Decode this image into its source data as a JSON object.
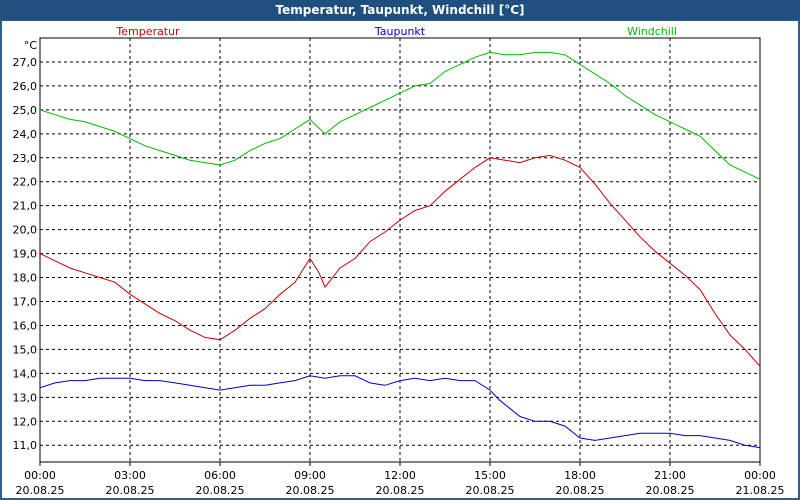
{
  "window": {
    "title": "Temperatur, Taupunkt, Windchill [°C]"
  },
  "chart_data": {
    "type": "line",
    "title": "Temperatur, Taupunkt, Windchill [°C]",
    "ylabel": "°C",
    "xlabel": "",
    "ylim": [
      10.3,
      28.0
    ],
    "yticks": [
      11.0,
      12.0,
      13.0,
      14.0,
      15.0,
      16.0,
      17.0,
      18.0,
      19.0,
      20.0,
      21.0,
      22.0,
      23.0,
      24.0,
      25.0,
      26.0,
      27.0
    ],
    "ytick_labels": [
      "11,0",
      "12,0",
      "13,0",
      "14,0",
      "15,0",
      "16,0",
      "17,0",
      "18,0",
      "19,0",
      "20,0",
      "21,0",
      "22,0",
      "23,0",
      "24,0",
      "25,0",
      "26,0",
      "27,0"
    ],
    "xlim": [
      0,
      24
    ],
    "xticks": [
      {
        "hour": 0,
        "time": "00:00",
        "date": "20.08.25"
      },
      {
        "hour": 3,
        "time": "03:00",
        "date": "20.08.25"
      },
      {
        "hour": 6,
        "time": "06:00",
        "date": "20.08.25"
      },
      {
        "hour": 9,
        "time": "09:00",
        "date": "20.08.25"
      },
      {
        "hour": 12,
        "time": "12:00",
        "date": "20.08.25"
      },
      {
        "hour": 15,
        "time": "15:00",
        "date": "20.08.25"
      },
      {
        "hour": 18,
        "time": "18:00",
        "date": "20.08.25"
      },
      {
        "hour": 21,
        "time": "21:00",
        "date": "20.08.25"
      },
      {
        "hour": 24,
        "time": "00:00",
        "date": "21.08.25"
      }
    ],
    "grid": true,
    "legend_position": "top",
    "series": [
      {
        "name": "Temperatur",
        "color": "#cc0000",
        "points": [
          [
            0.0,
            19.0
          ],
          [
            0.5,
            18.7
          ],
          [
            1.0,
            18.4
          ],
          [
            1.5,
            18.2
          ],
          [
            2.0,
            18.0
          ],
          [
            2.5,
            17.8
          ],
          [
            3.0,
            17.3
          ],
          [
            3.5,
            16.9
          ],
          [
            4.0,
            16.5
          ],
          [
            4.5,
            16.2
          ],
          [
            5.0,
            15.8
          ],
          [
            5.5,
            15.5
          ],
          [
            6.0,
            15.4
          ],
          [
            6.5,
            15.8
          ],
          [
            7.0,
            16.3
          ],
          [
            7.5,
            16.7
          ],
          [
            8.0,
            17.3
          ],
          [
            8.5,
            17.8
          ],
          [
            9.0,
            18.8
          ],
          [
            9.3,
            18.2
          ],
          [
            9.5,
            17.6
          ],
          [
            10.0,
            18.4
          ],
          [
            10.5,
            18.8
          ],
          [
            11.0,
            19.5
          ],
          [
            11.5,
            19.9
          ],
          [
            12.0,
            20.4
          ],
          [
            12.5,
            20.8
          ],
          [
            13.0,
            21.0
          ],
          [
            13.5,
            21.6
          ],
          [
            14.0,
            22.1
          ],
          [
            14.5,
            22.6
          ],
          [
            15.0,
            23.0
          ],
          [
            15.5,
            22.9
          ],
          [
            16.0,
            22.8
          ],
          [
            16.5,
            23.0
          ],
          [
            17.0,
            23.1
          ],
          [
            17.5,
            22.9
          ],
          [
            18.0,
            22.6
          ],
          [
            18.5,
            21.9
          ],
          [
            19.0,
            21.1
          ],
          [
            19.5,
            20.4
          ],
          [
            20.0,
            19.7
          ],
          [
            20.5,
            19.1
          ],
          [
            21.0,
            18.6
          ],
          [
            21.5,
            18.1
          ],
          [
            22.0,
            17.5
          ],
          [
            22.5,
            16.5
          ],
          [
            23.0,
            15.6
          ],
          [
            23.5,
            15.0
          ],
          [
            24.0,
            14.3
          ]
        ]
      },
      {
        "name": "Taupunkt",
        "color": "#0000cc",
        "points": [
          [
            0.0,
            13.4
          ],
          [
            0.5,
            13.6
          ],
          [
            1.0,
            13.7
          ],
          [
            1.5,
            13.7
          ],
          [
            2.0,
            13.8
          ],
          [
            2.5,
            13.8
          ],
          [
            3.0,
            13.8
          ],
          [
            3.5,
            13.7
          ],
          [
            4.0,
            13.7
          ],
          [
            4.5,
            13.6
          ],
          [
            5.0,
            13.5
          ],
          [
            5.5,
            13.4
          ],
          [
            6.0,
            13.3
          ],
          [
            6.5,
            13.4
          ],
          [
            7.0,
            13.5
          ],
          [
            7.5,
            13.5
          ],
          [
            8.0,
            13.6
          ],
          [
            8.5,
            13.7
          ],
          [
            9.0,
            13.9
          ],
          [
            9.5,
            13.8
          ],
          [
            10.0,
            13.9
          ],
          [
            10.5,
            13.9
          ],
          [
            11.0,
            13.6
          ],
          [
            11.5,
            13.5
          ],
          [
            12.0,
            13.7
          ],
          [
            12.5,
            13.8
          ],
          [
            13.0,
            13.7
          ],
          [
            13.5,
            13.8
          ],
          [
            14.0,
            13.7
          ],
          [
            14.5,
            13.7
          ],
          [
            15.0,
            13.3
          ],
          [
            15.3,
            12.9
          ],
          [
            15.7,
            12.5
          ],
          [
            16.0,
            12.2
          ],
          [
            16.5,
            12.0
          ],
          [
            17.0,
            12.0
          ],
          [
            17.5,
            11.8
          ],
          [
            18.0,
            11.3
          ],
          [
            18.5,
            11.2
          ],
          [
            19.0,
            11.3
          ],
          [
            19.5,
            11.4
          ],
          [
            20.0,
            11.5
          ],
          [
            20.5,
            11.5
          ],
          [
            21.0,
            11.5
          ],
          [
            21.5,
            11.4
          ],
          [
            22.0,
            11.4
          ],
          [
            22.5,
            11.3
          ],
          [
            23.0,
            11.2
          ],
          [
            23.5,
            11.0
          ],
          [
            24.0,
            10.9
          ]
        ]
      },
      {
        "name": "Windchill",
        "color": "#00bb00",
        "points": [
          [
            0.0,
            25.0
          ],
          [
            0.5,
            24.8
          ],
          [
            1.0,
            24.6
          ],
          [
            1.5,
            24.5
          ],
          [
            2.0,
            24.3
          ],
          [
            2.5,
            24.1
          ],
          [
            3.0,
            23.8
          ],
          [
            3.5,
            23.5
          ],
          [
            4.0,
            23.3
          ],
          [
            4.5,
            23.1
          ],
          [
            5.0,
            22.9
          ],
          [
            5.5,
            22.8
          ],
          [
            6.0,
            22.7
          ],
          [
            6.5,
            22.9
          ],
          [
            7.0,
            23.3
          ],
          [
            7.5,
            23.6
          ],
          [
            8.0,
            23.8
          ],
          [
            8.5,
            24.2
          ],
          [
            9.0,
            24.6
          ],
          [
            9.5,
            24.0
          ],
          [
            10.0,
            24.5
          ],
          [
            10.5,
            24.8
          ],
          [
            11.0,
            25.1
          ],
          [
            11.5,
            25.4
          ],
          [
            12.0,
            25.7
          ],
          [
            12.5,
            26.0
          ],
          [
            13.0,
            26.1
          ],
          [
            13.5,
            26.6
          ],
          [
            14.0,
            26.9
          ],
          [
            14.5,
            27.2
          ],
          [
            15.0,
            27.4
          ],
          [
            15.5,
            27.3
          ],
          [
            16.0,
            27.3
          ],
          [
            16.5,
            27.4
          ],
          [
            17.0,
            27.4
          ],
          [
            17.5,
            27.3
          ],
          [
            18.0,
            26.9
          ],
          [
            18.5,
            26.5
          ],
          [
            19.0,
            26.1
          ],
          [
            19.5,
            25.6
          ],
          [
            20.0,
            25.2
          ],
          [
            20.5,
            24.8
          ],
          [
            21.0,
            24.5
          ],
          [
            21.5,
            24.2
          ],
          [
            22.0,
            23.9
          ],
          [
            22.5,
            23.3
          ],
          [
            23.0,
            22.7
          ],
          [
            23.5,
            22.4
          ],
          [
            24.0,
            22.1
          ]
        ]
      }
    ]
  }
}
